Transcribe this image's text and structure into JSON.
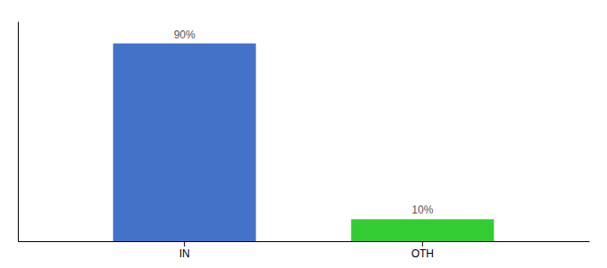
{
  "chart_data": {
    "type": "bar",
    "categories": [
      "IN",
      "OTH"
    ],
    "values": [
      90,
      10
    ],
    "value_labels": [
      "90%",
      "10%"
    ],
    "colors": [
      "#4472c8",
      "#33cc33"
    ],
    "data_labels": true,
    "ylim": [
      0,
      100
    ],
    "tick_labels": "x",
    "grid": false
  }
}
